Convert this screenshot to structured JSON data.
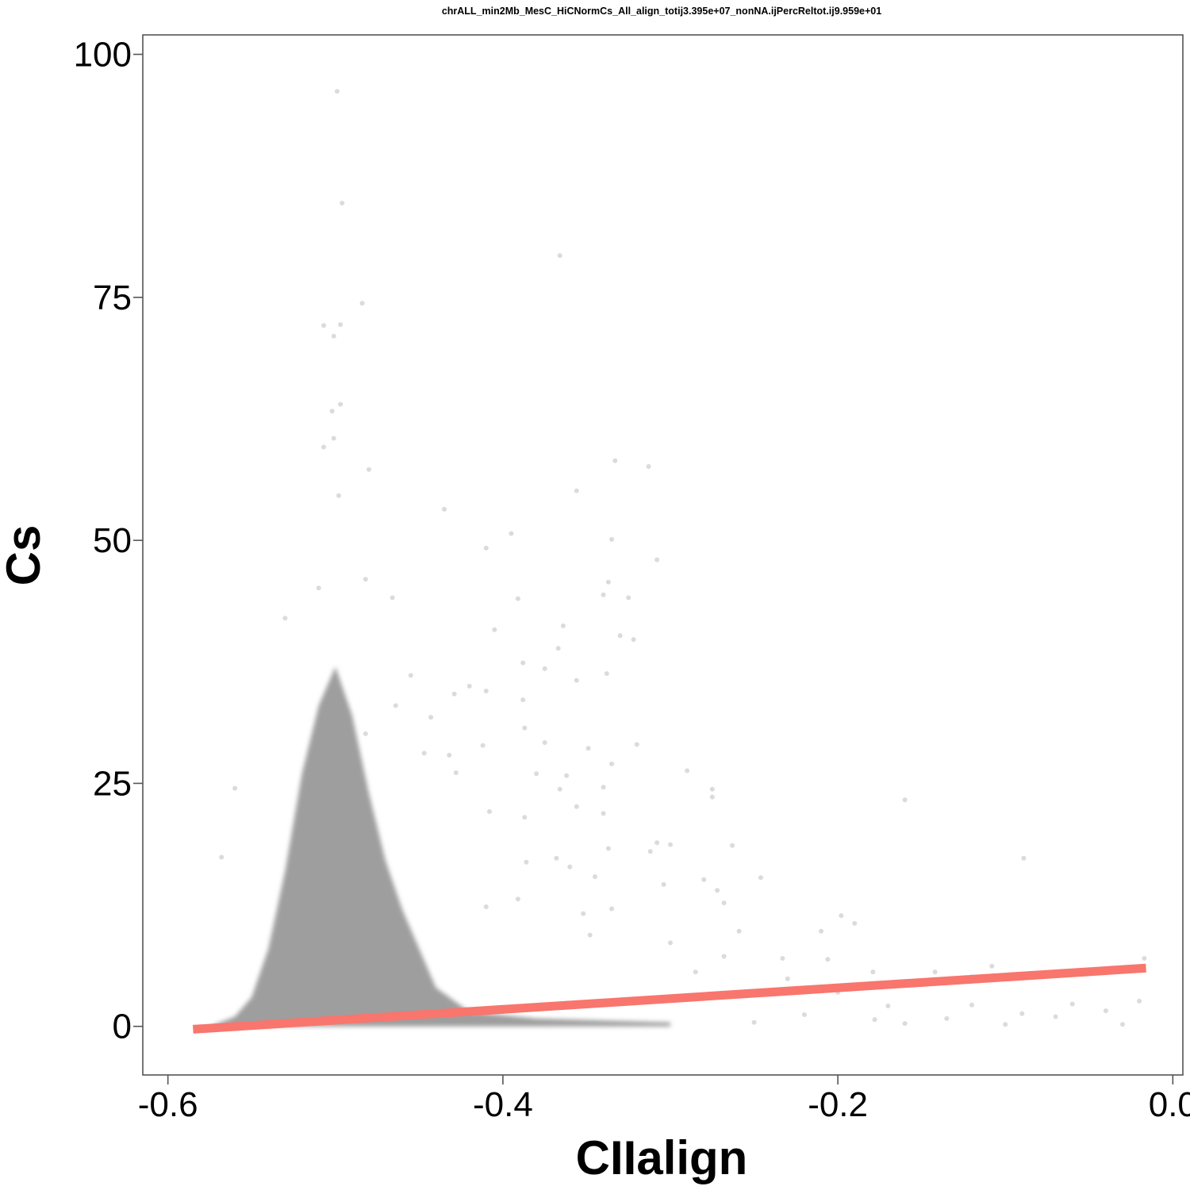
{
  "chart_data": {
    "type": "scatter",
    "title": "chrALL_min2Mb_MesC_HiCNormCs_All_align_totij3.395e+07_nonNA.ijPercReltot.ij9.959e+01",
    "xlabel": "CIIalign",
    "ylabel": "Cs",
    "xlim": [
      -0.615,
      0.006
    ],
    "ylim": [
      -5,
      102
    ],
    "x_ticks": [
      -0.6,
      -0.4,
      -0.2,
      0.0
    ],
    "x_tick_labels": [
      "-0.6",
      "-0.4",
      "-0.2",
      "0.0"
    ],
    "y_ticks": [
      0,
      25,
      50,
      75,
      100
    ],
    "y_tick_labels": [
      "0",
      "25",
      "50",
      "75",
      "100"
    ],
    "grid": false,
    "legend": "none",
    "point_color": "#999999",
    "line_color": "#F8766D",
    "dense_cloud_outline": [
      [
        -0.575,
        0
      ],
      [
        -0.56,
        1
      ],
      [
        -0.55,
        3
      ],
      [
        -0.54,
        8
      ],
      [
        -0.53,
        16
      ],
      [
        -0.52,
        26
      ],
      [
        -0.51,
        33
      ],
      [
        -0.5,
        37
      ],
      [
        -0.49,
        32
      ],
      [
        -0.48,
        24
      ],
      [
        -0.47,
        17
      ],
      [
        -0.46,
        12
      ],
      [
        -0.45,
        8
      ],
      [
        -0.44,
        4
      ],
      [
        -0.42,
        1.5
      ],
      [
        -0.38,
        0.8
      ],
      [
        -0.3,
        0.4
      ],
      [
        -0.3,
        0
      ],
      [
        -0.575,
        0
      ]
    ],
    "outlier_points": [
      [
        -0.499,
        96.2
      ],
      [
        -0.496,
        84.7
      ],
      [
        -0.366,
        79.3
      ],
      [
        -0.484,
        74.4
      ],
      [
        -0.507,
        72.1
      ],
      [
        -0.501,
        71.0
      ],
      [
        -0.497,
        72.2
      ],
      [
        -0.497,
        64.0
      ],
      [
        -0.502,
        63.3
      ],
      [
        -0.501,
        60.5
      ],
      [
        -0.507,
        59.6
      ],
      [
        -0.48,
        57.3
      ],
      [
        -0.333,
        58.2
      ],
      [
        -0.313,
        57.6
      ],
      [
        -0.356,
        55.1
      ],
      [
        -0.435,
        53.2
      ],
      [
        -0.498,
        54.6
      ],
      [
        -0.395,
        50.7
      ],
      [
        -0.335,
        50.1
      ],
      [
        -0.308,
        48.0
      ],
      [
        -0.41,
        49.2
      ],
      [
        -0.482,
        46.0
      ],
      [
        -0.51,
        45.1
      ],
      [
        -0.466,
        44.1
      ],
      [
        -0.34,
        44.4
      ],
      [
        -0.325,
        44.1
      ],
      [
        -0.337,
        45.7
      ],
      [
        -0.391,
        44.0
      ],
      [
        -0.53,
        42.0
      ],
      [
        -0.405,
        40.8
      ],
      [
        -0.33,
        40.2
      ],
      [
        -0.364,
        41.2
      ],
      [
        -0.388,
        37.4
      ],
      [
        -0.322,
        39.8
      ],
      [
        -0.338,
        36.3
      ],
      [
        -0.367,
        38.9
      ],
      [
        -0.375,
        36.8
      ],
      [
        -0.42,
        35.0
      ],
      [
        -0.455,
        36.1
      ],
      [
        -0.429,
        34.2
      ],
      [
        -0.41,
        34.5
      ],
      [
        -0.356,
        35.6
      ],
      [
        -0.388,
        33.6
      ],
      [
        -0.464,
        33.0
      ],
      [
        -0.443,
        31.8
      ],
      [
        -0.482,
        30.1
      ],
      [
        -0.447,
        28.1
      ],
      [
        -0.387,
        30.7
      ],
      [
        -0.432,
        27.9
      ],
      [
        -0.375,
        29.2
      ],
      [
        -0.32,
        29.0
      ],
      [
        -0.349,
        28.6
      ],
      [
        -0.412,
        28.9
      ],
      [
        -0.428,
        26.1
      ],
      [
        -0.38,
        26.0
      ],
      [
        -0.362,
        25.8
      ],
      [
        -0.366,
        24.4
      ],
      [
        -0.34,
        24.6
      ],
      [
        -0.335,
        27.0
      ],
      [
        -0.29,
        26.3
      ],
      [
        -0.275,
        24.4
      ],
      [
        -0.275,
        23.6
      ],
      [
        -0.16,
        23.3
      ],
      [
        -0.56,
        24.5
      ],
      [
        -0.387,
        21.5
      ],
      [
        -0.408,
        22.1
      ],
      [
        -0.356,
        22.6
      ],
      [
        -0.34,
        21.9
      ],
      [
        -0.337,
        18.3
      ],
      [
        -0.368,
        17.3
      ],
      [
        -0.36,
        16.4
      ],
      [
        -0.386,
        16.9
      ],
      [
        -0.308,
        18.9
      ],
      [
        -0.312,
        18.0
      ],
      [
        -0.3,
        18.7
      ],
      [
        -0.263,
        18.6
      ],
      [
        -0.089,
        17.3
      ],
      [
        -0.568,
        17.4
      ],
      [
        -0.28,
        15.1
      ],
      [
        -0.246,
        15.3
      ],
      [
        -0.272,
        14.0
      ],
      [
        -0.268,
        12.7
      ],
      [
        -0.304,
        14.6
      ],
      [
        -0.345,
        15.4
      ],
      [
        -0.352,
        11.6
      ],
      [
        -0.335,
        12.1
      ],
      [
        -0.391,
        13.1
      ],
      [
        -0.41,
        12.3
      ],
      [
        -0.198,
        11.4
      ],
      [
        -0.19,
        10.6
      ],
      [
        -0.21,
        9.8
      ],
      [
        -0.259,
        9.8
      ],
      [
        -0.3,
        8.6
      ],
      [
        -0.348,
        9.4
      ],
      [
        -0.206,
        6.9
      ],
      [
        -0.268,
        7.2
      ],
      [
        -0.233,
        7.0
      ],
      [
        -0.142,
        5.6
      ],
      [
        -0.108,
        6.2
      ],
      [
        -0.12,
        5.1
      ],
      [
        -0.017,
        7.0
      ],
      [
        -0.179,
        5.6
      ],
      [
        -0.23,
        4.9
      ],
      [
        -0.285,
        5.6
      ],
      [
        -0.246,
        3.4
      ],
      [
        -0.2,
        3.5
      ],
      [
        -0.17,
        2.1
      ],
      [
        -0.12,
        2.2
      ],
      [
        -0.06,
        2.3
      ],
      [
        -0.04,
        1.6
      ],
      [
        -0.02,
        2.6
      ],
      [
        -0.09,
        1.3
      ],
      [
        -0.135,
        0.8
      ],
      [
        -0.178,
        0.7
      ],
      [
        -0.25,
        0.4
      ],
      [
        -0.1,
        0.2
      ],
      [
        -0.03,
        0.2
      ],
      [
        -0.07,
        1.0
      ],
      [
        -0.16,
        0.3
      ],
      [
        -0.22,
        1.2
      ]
    ],
    "regression_line": {
      "x": [
        -0.585,
        -0.016
      ],
      "y": [
        -0.3,
        6.0
      ]
    }
  }
}
